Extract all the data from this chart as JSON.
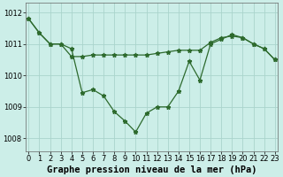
{
  "series1_x": [
    0,
    1,
    2,
    3,
    4,
    5,
    6,
    7,
    8,
    9,
    10,
    11,
    12,
    13,
    14,
    15,
    16,
    17,
    18,
    19,
    20,
    21,
    22,
    23
  ],
  "series1_y": [
    1011.8,
    1011.35,
    1011.0,
    1011.0,
    1010.6,
    1010.6,
    1010.65,
    1010.65,
    1010.65,
    1010.65,
    1010.65,
    1010.65,
    1010.7,
    1010.75,
    1010.8,
    1010.8,
    1010.8,
    1011.05,
    1011.2,
    1011.25,
    1011.2,
    1011.0,
    1010.85,
    1010.5
  ],
  "series2_x": [
    0,
    1,
    2,
    3,
    4,
    5,
    6,
    7,
    8,
    9,
    10,
    11,
    12,
    13,
    14,
    15,
    16,
    17,
    18,
    19,
    20,
    21,
    22,
    23
  ],
  "series2_y": [
    1011.8,
    1011.35,
    1011.0,
    1011.0,
    1010.85,
    1009.45,
    1009.55,
    1009.35,
    1008.85,
    1008.55,
    1008.2,
    1008.8,
    1009.0,
    1009.0,
    1009.5,
    1010.45,
    1009.85,
    1011.0,
    1011.15,
    1011.3,
    1011.2,
    1011.0,
    1010.85,
    1010.5
  ],
  "line_color": "#2d6a2d",
  "marker": "*",
  "marker_size": 3.5,
  "bg_color": "#cceee8",
  "grid_color": "#aad4cc",
  "ylabel_ticks": [
    1008,
    1009,
    1010,
    1011,
    1012
  ],
  "xlabel_ticks": [
    0,
    1,
    2,
    3,
    4,
    5,
    6,
    7,
    8,
    9,
    10,
    11,
    12,
    13,
    14,
    15,
    16,
    17,
    18,
    19,
    20,
    21,
    22,
    23
  ],
  "xlim": [
    -0.3,
    23.3
  ],
  "ylim": [
    1007.6,
    1012.3
  ],
  "xlabel": "Graphe pression niveau de la mer (hPa)",
  "xlabel_fontsize": 7.5,
  "tick_fontsize": 6.0
}
